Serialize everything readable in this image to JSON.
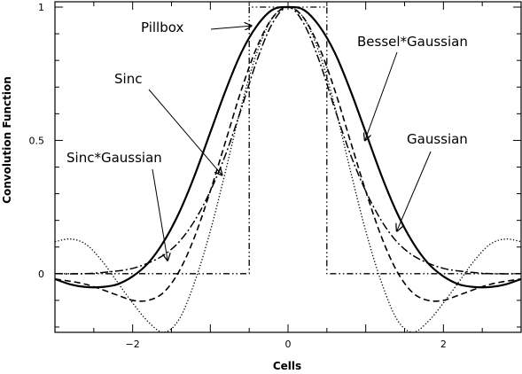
{
  "chart_data": {
    "type": "line",
    "title": "",
    "xlabel": "Cells",
    "ylabel": "Convolution Function",
    "xlim": [
      -3,
      3
    ],
    "ylim": [
      -0.22,
      1.02
    ],
    "xticks": [
      -2,
      0,
      2
    ],
    "xtick_labels": [
      "−2",
      "0",
      "2"
    ],
    "yticks": [
      0,
      0.5,
      1
    ],
    "ytick_labels": [
      "0",
      "0.5",
      "1"
    ],
    "grid": false,
    "legend": "none (curves labelled by arrow annotations)",
    "series": [
      {
        "name": "Pillbox",
        "style": "dash-dot-dot",
        "x": [
          -3,
          -0.5,
          -0.5,
          0.5,
          0.5,
          3
        ],
        "y": [
          0,
          0,
          1,
          1,
          0,
          0
        ]
      },
      {
        "name": "Sinc",
        "style": "dotted",
        "x": [
          -3,
          -2.8,
          -2.6,
          -2.4,
          -2.2,
          -2.0,
          -1.8,
          -1.6,
          -1.4,
          -1.2,
          -1.0,
          -0.8,
          -0.6,
          -0.4,
          -0.2,
          0,
          0.2,
          0.4,
          0.6,
          0.8,
          1.0,
          1.2,
          1.4,
          1.6,
          1.8,
          2.0,
          2.2,
          2.4,
          2.6,
          2.8,
          3
        ],
        "y": [
          0.12,
          0.13,
          0.11,
          0.05,
          -0.03,
          -0.11,
          -0.18,
          -0.22,
          -0.17,
          -0.03,
          0.16,
          0.39,
          0.63,
          0.83,
          0.96,
          1.0,
          0.96,
          0.83,
          0.63,
          0.39,
          0.16,
          -0.03,
          -0.17,
          -0.22,
          -0.18,
          -0.11,
          -0.03,
          0.05,
          0.11,
          0.13,
          0.12
        ]
      },
      {
        "name": "Sinc*Gaussian",
        "style": "dashed",
        "x": [
          -3,
          -2.6,
          -2.2,
          -2.0,
          -1.8,
          -1.6,
          -1.4,
          -1.2,
          -1.0,
          -0.8,
          -0.6,
          -0.4,
          -0.2,
          0,
          0.2,
          0.4,
          0.6,
          0.8,
          1.0,
          1.2,
          1.4,
          1.6,
          1.8,
          2.0,
          2.2,
          2.6,
          3
        ],
        "y": [
          -0.02,
          -0.04,
          -0.08,
          -0.1,
          -0.1,
          -0.07,
          0.01,
          0.14,
          0.31,
          0.5,
          0.69,
          0.85,
          0.96,
          1.0,
          0.96,
          0.85,
          0.69,
          0.5,
          0.31,
          0.14,
          0.01,
          -0.07,
          -0.1,
          -0.1,
          -0.08,
          -0.04,
          -0.02
        ]
      },
      {
        "name": "Gaussian",
        "style": "dash-dot",
        "x": [
          -3,
          -2.6,
          -2.2,
          -2.0,
          -1.8,
          -1.6,
          -1.4,
          -1.2,
          -1.0,
          -0.8,
          -0.6,
          -0.4,
          -0.2,
          0,
          0.2,
          0.4,
          0.6,
          0.8,
          1.0,
          1.2,
          1.4,
          1.6,
          1.8,
          2.0,
          2.2,
          2.6,
          3
        ],
        "y": [
          0,
          0,
          0.01,
          0.02,
          0.04,
          0.07,
          0.12,
          0.2,
          0.31,
          0.45,
          0.62,
          0.8,
          0.94,
          1.0,
          0.94,
          0.8,
          0.62,
          0.45,
          0.31,
          0.2,
          0.12,
          0.07,
          0.04,
          0.02,
          0.01,
          0,
          0
        ]
      },
      {
        "name": "Bessel*Gaussian",
        "style": "solid-bold",
        "x": [
          -3,
          -2.8,
          -2.6,
          -2.4,
          -2.2,
          -2.0,
          -1.8,
          -1.6,
          -1.4,
          -1.2,
          -1.0,
          -0.8,
          -0.6,
          -0.4,
          -0.2,
          0,
          0.2,
          0.4,
          0.6,
          0.8,
          1.0,
          1.2,
          1.4,
          1.6,
          1.8,
          2.0,
          2.2,
          2.4,
          2.6,
          2.8,
          3
        ],
        "y": [
          -0.02,
          -0.04,
          -0.05,
          -0.05,
          -0.04,
          -0.01,
          0.04,
          0.12,
          0.23,
          0.37,
          0.53,
          0.69,
          0.83,
          0.93,
          0.99,
          1.0,
          0.99,
          0.93,
          0.83,
          0.69,
          0.53,
          0.37,
          0.23,
          0.12,
          0.04,
          -0.01,
          -0.04,
          -0.05,
          -0.05,
          -0.04,
          -0.02
        ]
      }
    ],
    "annotations": [
      {
        "text": "Pillbox",
        "points_to": "Pillbox",
        "arrow_tip": [
          -0.47,
          0.93
        ]
      },
      {
        "text": "Sinc",
        "points_to": "Sinc*Gaussian",
        "arrow_tip": [
          -0.85,
          0.37
        ]
      },
      {
        "text": "Sinc*Gaussian",
        "points_to": "Sinc*Gaussian",
        "arrow_tip": [
          -1.55,
          0.05
        ]
      },
      {
        "text": "Bessel*Gaussian",
        "points_to": "Bessel*Gaussian",
        "arrow_tip": [
          0.99,
          0.5
        ]
      },
      {
        "text": "Gaussian",
        "points_to": "Gaussian",
        "arrow_tip": [
          1.4,
          0.16
        ]
      }
    ]
  }
}
